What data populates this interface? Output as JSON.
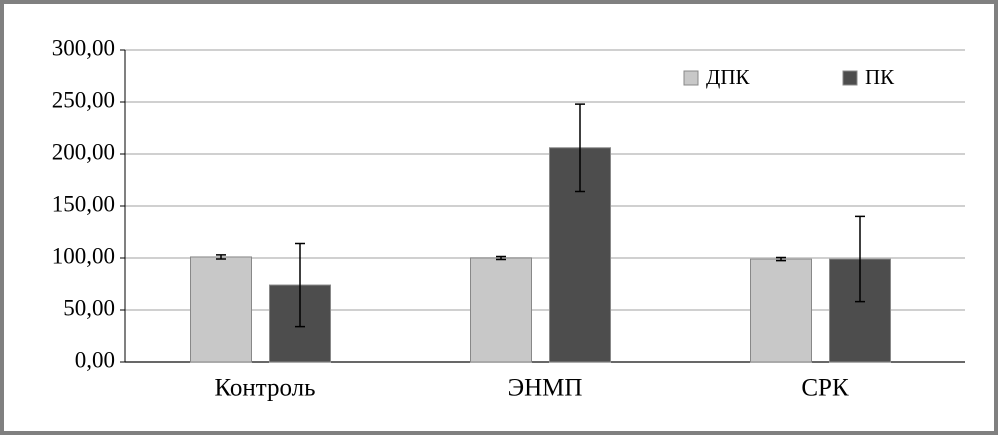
{
  "chart_data": {
    "type": "bar",
    "categories": [
      "Контроль",
      "ЭНМП",
      "СРК"
    ],
    "series": [
      {
        "name": "ДПК",
        "color": "#c8c8c8",
        "values": [
          101,
          100,
          99
        ],
        "errors": [
          2,
          1.5,
          1.5
        ]
      },
      {
        "name": "ПК",
        "color": "#4d4d4d",
        "values": [
          74,
          206,
          99
        ],
        "errors": [
          40,
          42,
          41
        ]
      }
    ],
    "ylim": [
      0,
      300
    ],
    "yticks": [
      {
        "value": 0,
        "label": "0,00"
      },
      {
        "value": 50,
        "label": "50,00"
      },
      {
        "value": 100,
        "label": "100,00"
      },
      {
        "value": 150,
        "label": "150,00"
      },
      {
        "value": 200,
        "label": "200,00"
      },
      {
        "value": 250,
        "label": "250,00"
      },
      {
        "value": 300,
        "label": "300,00"
      }
    ],
    "grid": true,
    "legend": "top-right"
  }
}
